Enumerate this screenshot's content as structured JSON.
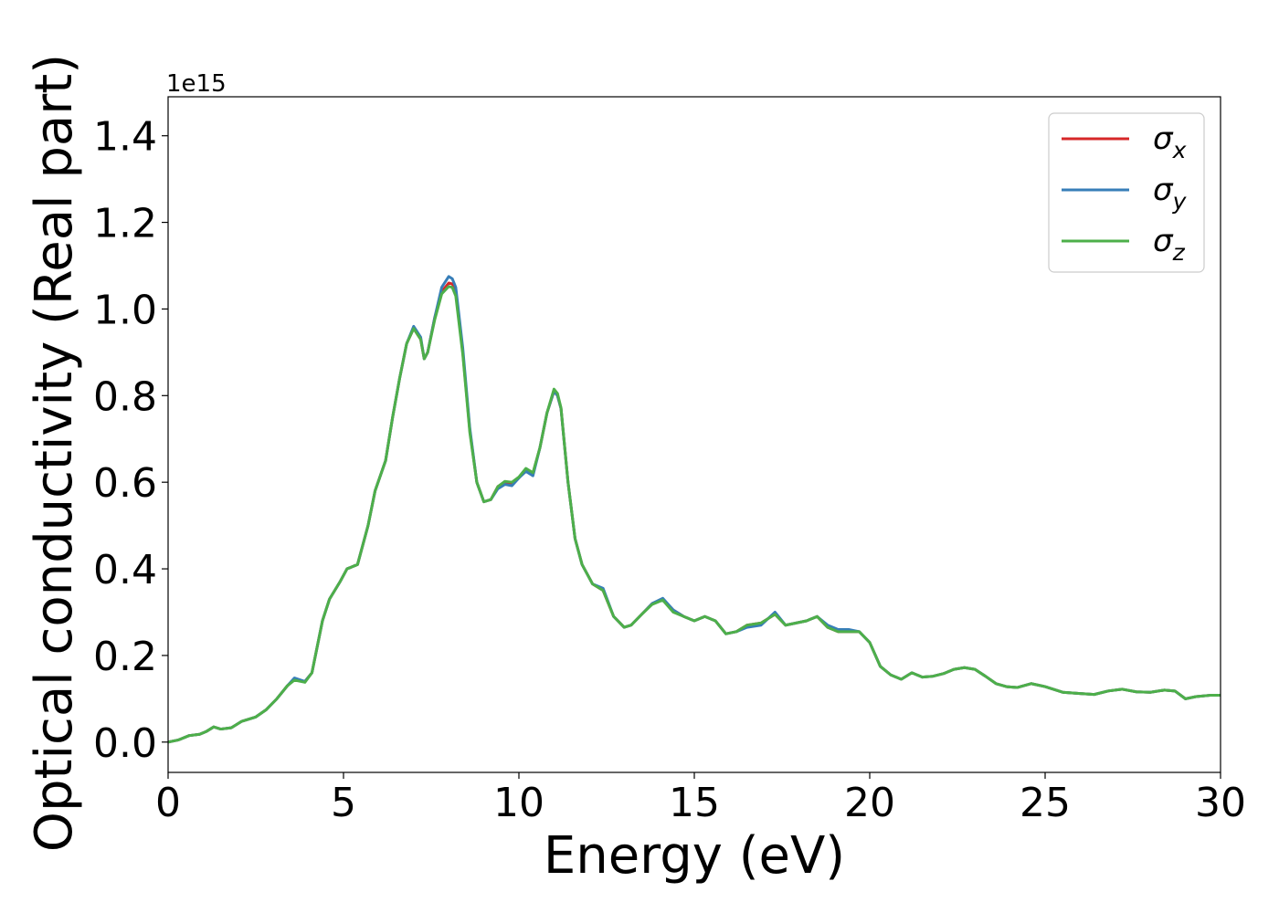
{
  "chart_data": {
    "type": "line",
    "xlabel": "Energy (eV)",
    "ylabel": "Optical conductivity (Real part)",
    "offset_label": "1e15",
    "xlim": [
      0,
      30
    ],
    "ylim": [
      -0.07,
      1.49
    ],
    "x_ticks": [
      0,
      5,
      10,
      15,
      20,
      25,
      30
    ],
    "x_tick_labels": [
      "0",
      "5",
      "10",
      "15",
      "20",
      "25",
      "30"
    ],
    "y_ticks": [
      0.0,
      0.2,
      0.4,
      0.6,
      0.8,
      1.0,
      1.2,
      1.4
    ],
    "y_tick_labels": [
      "0.0",
      "0.2",
      "0.4",
      "0.6",
      "0.8",
      "1.0",
      "1.2",
      "1.4"
    ],
    "grid": false,
    "legend_position": "top-right",
    "x": [
      0,
      0.3,
      0.6,
      0.9,
      1.1,
      1.3,
      1.5,
      1.8,
      2.1,
      2.5,
      2.8,
      3.1,
      3.4,
      3.6,
      3.9,
      4.1,
      4.4,
      4.6,
      4.9,
      5.1,
      5.4,
      5.7,
      5.9,
      6.2,
      6.4,
      6.6,
      6.8,
      7.0,
      7.2,
      7.3,
      7.4,
      7.6,
      7.8,
      8.0,
      8.1,
      8.2,
      8.4,
      8.6,
      8.8,
      9.0,
      9.2,
      9.4,
      9.6,
      9.8,
      10.0,
      10.2,
      10.4,
      10.6,
      10.8,
      11.0,
      11.1,
      11.2,
      11.4,
      11.6,
      11.8,
      12.1,
      12.4,
      12.7,
      13.0,
      13.2,
      13.5,
      13.8,
      14.1,
      14.4,
      14.7,
      15.0,
      15.3,
      15.6,
      15.9,
      16.2,
      16.5,
      16.9,
      17.3,
      17.6,
      17.9,
      18.2,
      18.5,
      18.8,
      19.1,
      19.4,
      19.7,
      20.0,
      20.3,
      20.6,
      20.9,
      21.2,
      21.5,
      21.8,
      22.1,
      22.4,
      22.7,
      23.0,
      23.3,
      23.6,
      23.9,
      24.2,
      24.6,
      25.0,
      25.5,
      26.0,
      26.4,
      26.8,
      27.2,
      27.6,
      28.0,
      28.4,
      28.7,
      29.0,
      29.3,
      29.7,
      30.0
    ],
    "series": [
      {
        "name": "σx",
        "color": "#d62728",
        "values": [
          0.0,
          0.005,
          0.015,
          0.018,
          0.025,
          0.035,
          0.03,
          0.033,
          0.048,
          0.058,
          0.075,
          0.1,
          0.13,
          0.145,
          0.14,
          0.16,
          0.28,
          0.33,
          0.37,
          0.4,
          0.41,
          0.5,
          0.58,
          0.65,
          0.75,
          0.84,
          0.92,
          0.955,
          0.93,
          0.885,
          0.9,
          0.98,
          1.04,
          1.06,
          1.058,
          1.04,
          0.9,
          0.72,
          0.6,
          0.555,
          0.56,
          0.59,
          0.6,
          0.598,
          0.61,
          0.63,
          0.62,
          0.68,
          0.76,
          0.81,
          0.8,
          0.77,
          0.6,
          0.47,
          0.41,
          0.365,
          0.35,
          0.29,
          0.265,
          0.27,
          0.295,
          0.32,
          0.33,
          0.305,
          0.29,
          0.28,
          0.29,
          0.28,
          0.25,
          0.255,
          0.27,
          0.275,
          0.295,
          0.27,
          0.275,
          0.28,
          0.29,
          0.265,
          0.255,
          0.255,
          0.255,
          0.23,
          0.175,
          0.155,
          0.145,
          0.16,
          0.15,
          0.152,
          0.158,
          0.168,
          0.172,
          0.168,
          0.152,
          0.135,
          0.128,
          0.126,
          0.135,
          0.128,
          0.115,
          0.112,
          0.11,
          0.118,
          0.122,
          0.116,
          0.115,
          0.12,
          0.118,
          0.1,
          0.105,
          0.108,
          0.108
        ]
      },
      {
        "name": "σy",
        "color": "#377eb8",
        "values": [
          0.0,
          0.005,
          0.015,
          0.018,
          0.025,
          0.035,
          0.03,
          0.033,
          0.048,
          0.058,
          0.075,
          0.1,
          0.13,
          0.148,
          0.14,
          0.16,
          0.28,
          0.33,
          0.37,
          0.4,
          0.41,
          0.5,
          0.58,
          0.65,
          0.75,
          0.84,
          0.92,
          0.96,
          0.935,
          0.885,
          0.9,
          0.98,
          1.05,
          1.075,
          1.07,
          1.05,
          0.91,
          0.725,
          0.6,
          0.555,
          0.56,
          0.585,
          0.595,
          0.592,
          0.61,
          0.625,
          0.615,
          0.68,
          0.76,
          0.81,
          0.8,
          0.77,
          0.6,
          0.47,
          0.41,
          0.365,
          0.355,
          0.29,
          0.265,
          0.27,
          0.295,
          0.32,
          0.332,
          0.305,
          0.29,
          0.28,
          0.29,
          0.28,
          0.25,
          0.255,
          0.265,
          0.27,
          0.3,
          0.27,
          0.275,
          0.28,
          0.29,
          0.27,
          0.26,
          0.26,
          0.255,
          0.23,
          0.175,
          0.155,
          0.145,
          0.16,
          0.15,
          0.152,
          0.158,
          0.168,
          0.172,
          0.168,
          0.152,
          0.135,
          0.128,
          0.126,
          0.135,
          0.128,
          0.115,
          0.112,
          0.11,
          0.118,
          0.122,
          0.116,
          0.115,
          0.12,
          0.118,
          0.1,
          0.105,
          0.108,
          0.108
        ]
      },
      {
        "name": "σz",
        "color": "#4daf4a",
        "values": [
          0.0,
          0.005,
          0.015,
          0.018,
          0.025,
          0.035,
          0.03,
          0.033,
          0.048,
          0.058,
          0.075,
          0.1,
          0.13,
          0.143,
          0.138,
          0.16,
          0.28,
          0.33,
          0.37,
          0.4,
          0.41,
          0.5,
          0.58,
          0.65,
          0.75,
          0.84,
          0.92,
          0.955,
          0.93,
          0.885,
          0.9,
          0.975,
          1.035,
          1.052,
          1.05,
          1.03,
          0.895,
          0.715,
          0.6,
          0.555,
          0.56,
          0.59,
          0.602,
          0.6,
          0.612,
          0.632,
          0.622,
          0.68,
          0.76,
          0.815,
          0.805,
          0.772,
          0.6,
          0.47,
          0.41,
          0.365,
          0.35,
          0.29,
          0.265,
          0.27,
          0.295,
          0.318,
          0.328,
          0.3,
          0.29,
          0.28,
          0.29,
          0.28,
          0.25,
          0.255,
          0.27,
          0.275,
          0.295,
          0.27,
          0.275,
          0.28,
          0.29,
          0.265,
          0.255,
          0.255,
          0.255,
          0.23,
          0.175,
          0.155,
          0.145,
          0.16,
          0.15,
          0.152,
          0.158,
          0.168,
          0.172,
          0.168,
          0.152,
          0.135,
          0.128,
          0.126,
          0.135,
          0.128,
          0.115,
          0.112,
          0.11,
          0.118,
          0.122,
          0.116,
          0.115,
          0.12,
          0.118,
          0.1,
          0.105,
          0.108,
          0.108
        ]
      }
    ]
  }
}
